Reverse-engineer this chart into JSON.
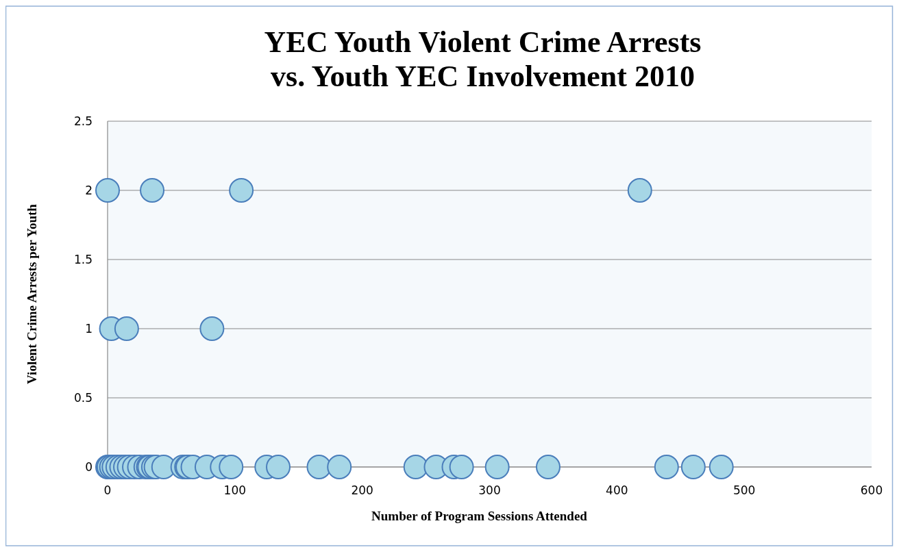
{
  "chart_data": {
    "type": "scatter",
    "title": "YEC Youth Violent Crime Arrests\nvs. Youth YEC Involvement 2010",
    "xlabel": "Number of Program Sessions Attended",
    "ylabel": "Violent Crime Arrests per Youth",
    "series": [
      {
        "color": "#a6d6e6",
        "x": [
          0,
          35,
          105,
          418,
          3,
          15,
          82,
          0,
          1,
          3,
          5,
          8,
          11,
          14,
          17,
          21,
          25,
          30,
          32,
          33,
          36,
          38,
          44,
          59,
          62,
          63,
          67,
          78,
          90,
          97,
          125,
          134,
          166,
          182,
          242,
          258,
          272,
          278,
          306,
          346,
          439,
          460,
          482
        ],
        "values": [
          2,
          2,
          2,
          2,
          1,
          1,
          1,
          0,
          0,
          0,
          0,
          0,
          0,
          0,
          0,
          0,
          0,
          0,
          0,
          0,
          0,
          0,
          0,
          0,
          0,
          0,
          0,
          0,
          0,
          0,
          0,
          0,
          0,
          0,
          0,
          0,
          0,
          0,
          0,
          0,
          0,
          0,
          0
        ]
      }
    ],
    "xlim": [
      0,
      600
    ],
    "xticks": [
      0,
      100,
      200,
      300,
      400,
      500,
      600
    ],
    "ylim": [
      0,
      2.5
    ],
    "yticks": [
      0,
      0.5,
      1,
      1.5,
      2,
      2.5
    ],
    "grid": "y",
    "marker": "circle"
  }
}
